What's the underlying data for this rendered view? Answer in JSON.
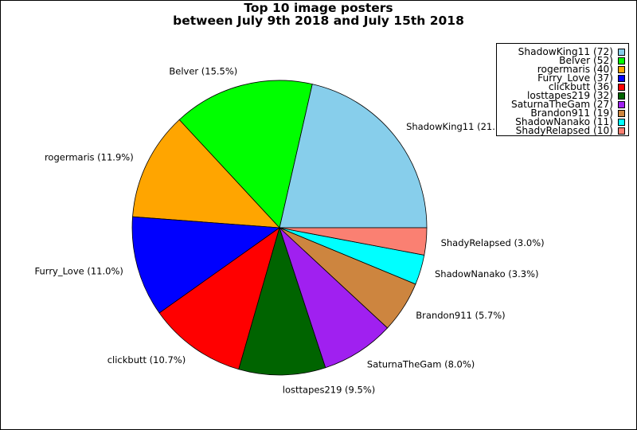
{
  "chart_data": {
    "type": "pie",
    "title_lines": [
      "Top 10 image posters",
      "between July 9th 2018 and July 15th 2018"
    ],
    "slices": [
      {
        "name": "ShadowKing11",
        "value": 72,
        "pct_label": "ShadowKing11 (21.",
        "legend_label": "ShadowKing11 (72)",
        "color": "#87ceeb"
      },
      {
        "name": "Belver",
        "value": 52,
        "pct_label": "Belver (15.5%)",
        "legend_label": "Belver (52)",
        "color": "#00ff00"
      },
      {
        "name": "rogermaris",
        "value": 40,
        "pct_label": "rogermaris (11.9%)",
        "legend_label": "rogermaris (40)",
        "color": "#ffa500"
      },
      {
        "name": "Furry_Love",
        "value": 37,
        "pct_label": "Furry_Love (11.0%)",
        "legend_label": "Furry_Love (37)",
        "color": "#0000ff"
      },
      {
        "name": "clickbutt",
        "value": 36,
        "pct_label": "clickbutt (10.7%)",
        "legend_label": "clickbutt (36)",
        "color": "#ff0000"
      },
      {
        "name": "losttapes219",
        "value": 32,
        "pct_label": "losttapes219 (9.5%)",
        "legend_label": "losttapes219 (32)",
        "color": "#006400"
      },
      {
        "name": "SaturnaTheGam",
        "value": 27,
        "pct_label": "SaturnaTheGam (8.0%)",
        "legend_label": "SaturnaTheGam (27)",
        "color": "#a020f0"
      },
      {
        "name": "Brandon911",
        "value": 19,
        "pct_label": "Brandon911 (5.7%)",
        "legend_label": "Brandon911 (19)",
        "color": "#cd853f"
      },
      {
        "name": "ShadowNanako",
        "value": 11,
        "pct_label": "ShadowNanako (3.3%)",
        "legend_label": "ShadowNanako (11)",
        "color": "#00ffff"
      },
      {
        "name": "ShadyRelapsed",
        "value": 10,
        "pct_label": "ShadyRelapsed (3.0%)",
        "legend_label": "ShadyRelapsed (10)",
        "color": "#fa8072"
      }
    ],
    "start_direction": "east",
    "direction": "counterclockwise",
    "legend_position": "top-right"
  }
}
